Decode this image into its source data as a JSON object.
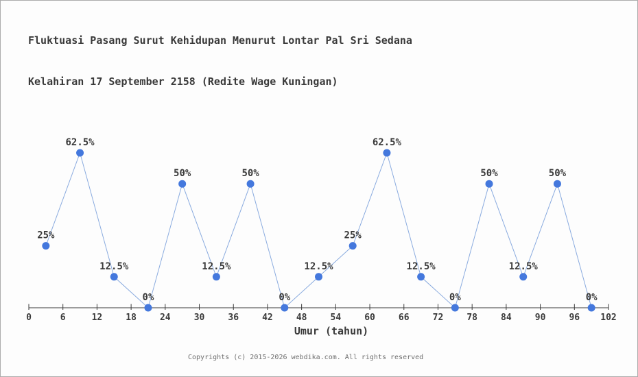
{
  "header": {
    "title_line1": "Fluktuasi Pasang Surut Kehidupan Menurut Lontar Pal Sri Sedana",
    "title_line2": "Kelahiran 17 September 2158 (Redite Wage Kuningan)"
  },
  "footer": {
    "copyright": "Copyrights (c) 2015-2026 webdika.com. All rights reserved"
  },
  "chart_data": {
    "type": "line",
    "title": "Fluktuasi Pasang Surut Kehidupan Menurut Lontar Pal Sri Sedana Kelahiran 17 September 2158 (Redite Wage Kuningan)",
    "xlabel": "Umur (tahun)",
    "ylabel": "",
    "x": [
      3,
      9,
      15,
      21,
      27,
      33,
      39,
      45,
      51,
      57,
      63,
      69,
      75,
      81,
      87,
      93,
      99
    ],
    "values": [
      25,
      62.5,
      12.5,
      0,
      50,
      12.5,
      50,
      0,
      12.5,
      25,
      62.5,
      12.5,
      0,
      50,
      12.5,
      50,
      0
    ],
    "point_labels": [
      "25%",
      "62.5%",
      "12.5%",
      "0%",
      "50%",
      "12.5%",
      "50%",
      "0%",
      "12.5%",
      "25%",
      "62.5%",
      "12.5%",
      "0%",
      "50%",
      "12.5%",
      "50%",
      "0%"
    ],
    "x_ticks": [
      0,
      6,
      12,
      18,
      24,
      30,
      36,
      42,
      48,
      54,
      60,
      66,
      72,
      78,
      84,
      90,
      96,
      102
    ],
    "xlim": [
      0,
      102
    ],
    "ylim": [
      0,
      68
    ],
    "grid": false,
    "legend": false,
    "colors": {
      "line": "#8aabdf",
      "marker": "#4478dd",
      "axis": "#3a3a3a",
      "text": "#3a3a3a",
      "footer_text": "#6e6e6e",
      "background": "#fdfdfd"
    }
  }
}
